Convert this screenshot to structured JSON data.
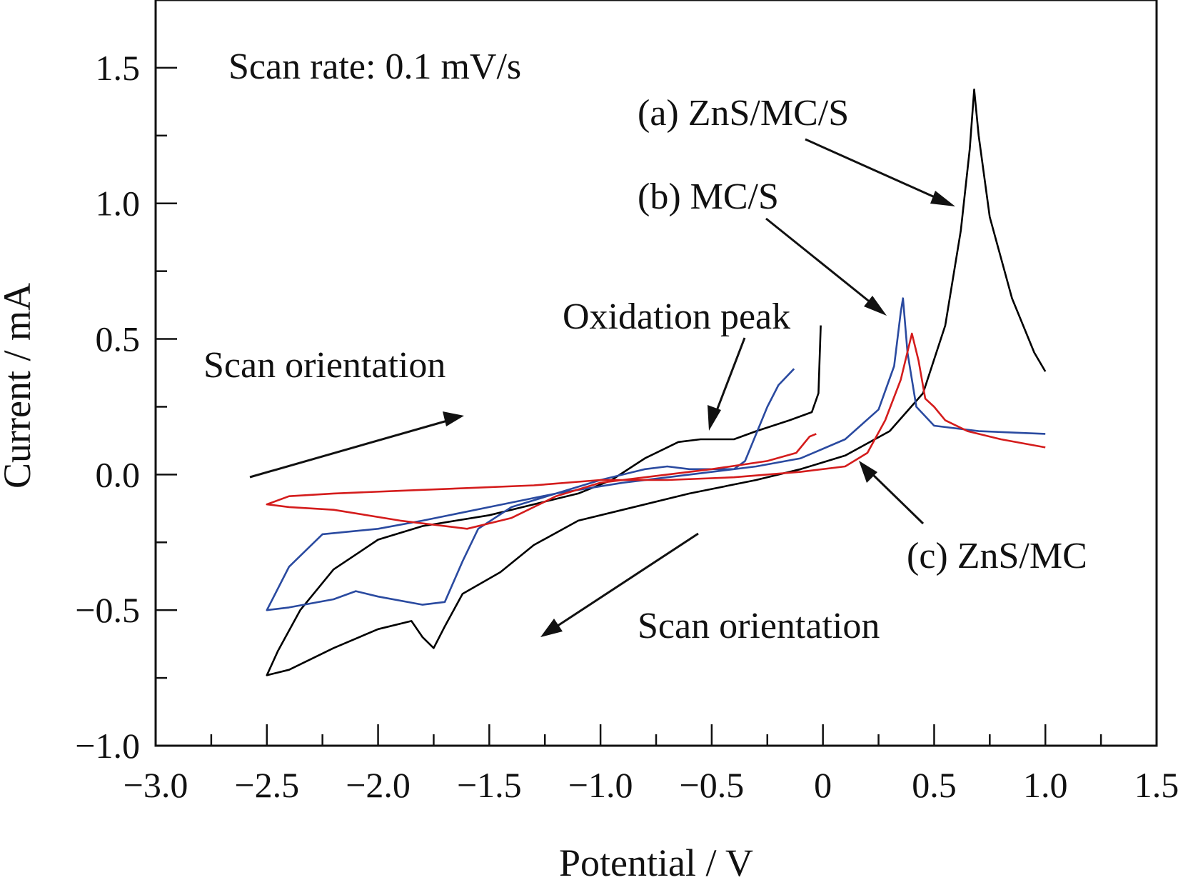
{
  "chart_data": {
    "type": "line",
    "title": "",
    "xlabel": "Potential / V",
    "ylabel": "Current / mA",
    "xlim": [
      -3.0,
      1.5
    ],
    "ylim": [
      -1.0,
      1.75
    ],
    "grid": false,
    "x_ticks": [
      -3.0,
      -2.5,
      -2.0,
      -1.5,
      -1.0,
      -0.5,
      0,
      0.5,
      1.0,
      1.5
    ],
    "x_tick_labels": [
      "−3.0",
      "−2.5",
      "−2.0",
      "−1.5",
      "−1.0",
      "−0.5",
      "0",
      "0.5",
      "1.0",
      "1.5"
    ],
    "y_ticks": [
      -1.0,
      -0.5,
      0.0,
      0.5,
      1.0,
      1.5
    ],
    "y_tick_labels": [
      "−1.0",
      "−0.5",
      "0.0",
      "0.5",
      "1.0",
      "1.5"
    ],
    "series": [
      {
        "label": "(a) ZnS/MC/S",
        "color": "#000000",
        "points": [
          [
            -0.01,
            0.55
          ],
          [
            -0.02,
            0.3
          ],
          [
            -0.05,
            0.23
          ],
          [
            -0.15,
            0.2
          ],
          [
            -0.3,
            0.16
          ],
          [
            -0.4,
            0.13
          ],
          [
            -0.55,
            0.13
          ],
          [
            -0.65,
            0.12
          ],
          [
            -0.8,
            0.06
          ],
          [
            -0.95,
            -0.02
          ],
          [
            -1.1,
            -0.07
          ],
          [
            -1.3,
            -0.11
          ],
          [
            -1.5,
            -0.15
          ],
          [
            -1.65,
            -0.17
          ],
          [
            -1.8,
            -0.19
          ],
          [
            -2.0,
            -0.24
          ],
          [
            -2.2,
            -0.35
          ],
          [
            -2.35,
            -0.5
          ],
          [
            -2.45,
            -0.65
          ],
          [
            -2.5,
            -0.74
          ],
          [
            -2.4,
            -0.72
          ],
          [
            -2.2,
            -0.64
          ],
          [
            -2.0,
            -0.57
          ],
          [
            -1.85,
            -0.54
          ],
          [
            -1.8,
            -0.6
          ],
          [
            -1.75,
            -0.64
          ],
          [
            -1.7,
            -0.56
          ],
          [
            -1.62,
            -0.44
          ],
          [
            -1.45,
            -0.36
          ],
          [
            -1.3,
            -0.26
          ],
          [
            -1.1,
            -0.17
          ],
          [
            -0.9,
            -0.13
          ],
          [
            -0.6,
            -0.07
          ],
          [
            -0.3,
            -0.02
          ],
          [
            -0.1,
            0.02
          ],
          [
            0.1,
            0.07
          ],
          [
            0.3,
            0.16
          ],
          [
            0.45,
            0.3
          ],
          [
            0.55,
            0.55
          ],
          [
            0.62,
            0.9
          ],
          [
            0.66,
            1.2
          ],
          [
            0.68,
            1.42
          ],
          [
            0.7,
            1.25
          ],
          [
            0.75,
            0.95
          ],
          [
            0.85,
            0.65
          ],
          [
            0.95,
            0.45
          ],
          [
            1.0,
            0.38
          ]
        ]
      },
      {
        "label": "(b) MC/S",
        "color": "#2a4aa0",
        "points": [
          [
            -0.13,
            0.39
          ],
          [
            -0.2,
            0.33
          ],
          [
            -0.25,
            0.25
          ],
          [
            -0.3,
            0.15
          ],
          [
            -0.35,
            0.05
          ],
          [
            -0.4,
            0.02
          ],
          [
            -0.6,
            0.02
          ],
          [
            -0.7,
            0.03
          ],
          [
            -0.8,
            0.02
          ],
          [
            -1.0,
            -0.02
          ],
          [
            -1.2,
            -0.07
          ],
          [
            -1.4,
            -0.12
          ],
          [
            -1.55,
            -0.2
          ],
          [
            -1.62,
            -0.32
          ],
          [
            -1.7,
            -0.47
          ],
          [
            -1.8,
            -0.48
          ],
          [
            -2.0,
            -0.45
          ],
          [
            -2.1,
            -0.43
          ],
          [
            -2.2,
            -0.46
          ],
          [
            -2.4,
            -0.49
          ],
          [
            -2.5,
            -0.5
          ],
          [
            -2.4,
            -0.34
          ],
          [
            -2.25,
            -0.22
          ],
          [
            -2.0,
            -0.2
          ],
          [
            -1.8,
            -0.17
          ],
          [
            -1.5,
            -0.12
          ],
          [
            -1.2,
            -0.07
          ],
          [
            -0.9,
            -0.03
          ],
          [
            -0.6,
            0.0
          ],
          [
            -0.3,
            0.03
          ],
          [
            -0.1,
            0.06
          ],
          [
            0.1,
            0.13
          ],
          [
            0.25,
            0.24
          ],
          [
            0.32,
            0.4
          ],
          [
            0.35,
            0.6
          ],
          [
            0.36,
            0.65
          ],
          [
            0.38,
            0.45
          ],
          [
            0.42,
            0.25
          ],
          [
            0.5,
            0.18
          ],
          [
            0.7,
            0.16
          ],
          [
            1.0,
            0.15
          ]
        ]
      },
      {
        "label": "(c) ZnS/MC",
        "color": "#d41c1c",
        "points": [
          [
            -0.03,
            0.15
          ],
          [
            -0.06,
            0.14
          ],
          [
            -0.12,
            0.08
          ],
          [
            -0.25,
            0.05
          ],
          [
            -0.5,
            0.02
          ],
          [
            -0.8,
            -0.01
          ],
          [
            -1.0,
            -0.03
          ],
          [
            -1.2,
            -0.08
          ],
          [
            -1.4,
            -0.16
          ],
          [
            -1.6,
            -0.2
          ],
          [
            -1.9,
            -0.17
          ],
          [
            -2.2,
            -0.13
          ],
          [
            -2.4,
            -0.12
          ],
          [
            -2.5,
            -0.11
          ],
          [
            -2.4,
            -0.08
          ],
          [
            -2.2,
            -0.07
          ],
          [
            -1.9,
            -0.06
          ],
          [
            -1.6,
            -0.05
          ],
          [
            -1.3,
            -0.04
          ],
          [
            -1.0,
            -0.02
          ],
          [
            -0.7,
            -0.02
          ],
          [
            -0.4,
            -0.01
          ],
          [
            -0.1,
            0.01
          ],
          [
            0.1,
            0.03
          ],
          [
            0.2,
            0.08
          ],
          [
            0.28,
            0.2
          ],
          [
            0.35,
            0.35
          ],
          [
            0.4,
            0.52
          ],
          [
            0.43,
            0.42
          ],
          [
            0.46,
            0.28
          ],
          [
            0.5,
            0.25
          ],
          [
            0.55,
            0.2
          ],
          [
            0.65,
            0.16
          ],
          [
            0.8,
            0.13
          ],
          [
            1.0,
            0.1
          ]
        ]
      }
    ],
    "annotations": {
      "scan_rate": "Scan rate: 0.1 mV/s",
      "label_a": "(a) ZnS/MC/S",
      "label_b": "(b) MC/S",
      "label_c": "(c) ZnS/MC",
      "oxidation_peak": "Oxidation peak",
      "scan_orientation_top": "Scan orientation",
      "scan_orientation_bottom": "Scan orientation"
    }
  }
}
